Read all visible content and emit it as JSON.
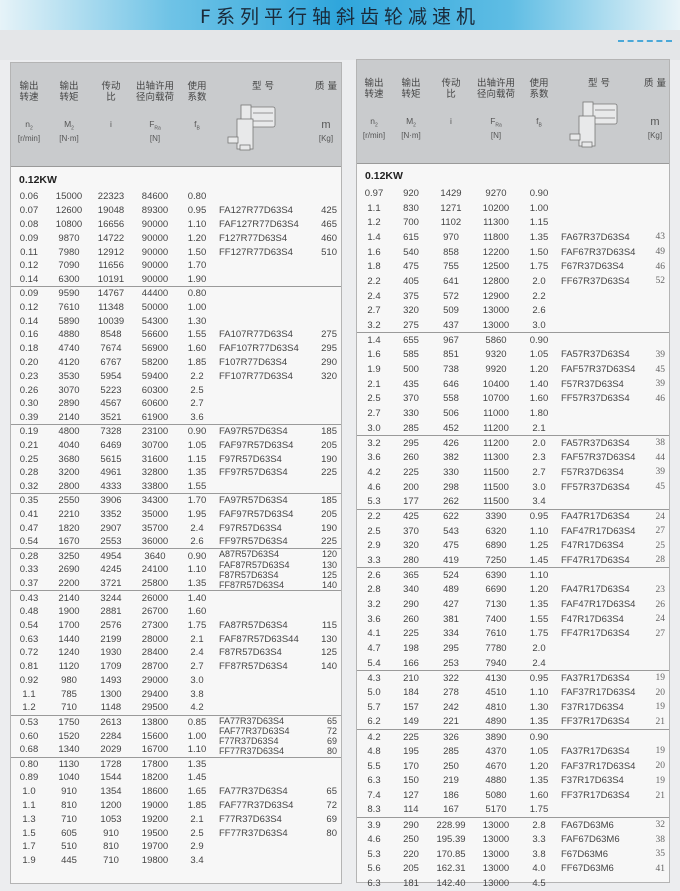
{
  "title": "F系列平行轴斜齿轮减速机",
  "header": {
    "columns": [
      {
        "label": "输出\n转速",
        "symbol": "n",
        "sub": "2",
        "unit": "[r/min]"
      },
      {
        "label": "输出\n转矩",
        "symbol": "M",
        "sub": "2",
        "unit": "[N·m]"
      },
      {
        "label": "传动\n比",
        "symbol": "i",
        "sub": "",
        "unit": ""
      },
      {
        "label": "出轴许用\n径向载荷",
        "symbol": "F",
        "sub": "Ra",
        "unit": "[N]"
      },
      {
        "label": "使用\n系数",
        "symbol": "f",
        "sub": "B",
        "unit": ""
      },
      {
        "label": "型  号",
        "symbol": "",
        "sub": "",
        "unit": ""
      },
      {
        "label": "质 量",
        "symbol": "m",
        "sub": "",
        "unit": "[Kg]"
      }
    ],
    "image_icon": "gear-motor-drawing"
  },
  "left": {
    "power": "0.12KW",
    "groups": [
      {
        "rows": [
          [
            "0.06",
            "15000",
            "22323",
            "84600",
            "0.80",
            "",
            ""
          ],
          [
            "0.07",
            "12600",
            "19048",
            "89300",
            "0.95",
            "FA127R77D63S4",
            "425"
          ],
          [
            "0.08",
            "10800",
            "16656",
            "90000",
            "1.10",
            "FAF127R77D63S4",
            "465"
          ],
          [
            "0.09",
            "9870",
            "14722",
            "90000",
            "1.20",
            "F127R77D63S4",
            "460"
          ],
          [
            "0.11",
            "7980",
            "12912",
            "90000",
            "1.50",
            "FF127R77D63S4",
            "510"
          ],
          [
            "0.12",
            "7090",
            "11656",
            "90000",
            "1.70",
            "",
            ""
          ],
          [
            "0.14",
            "6300",
            "10191",
            "90000",
            "1.90",
            "",
            ""
          ]
        ]
      },
      {
        "rows": [
          [
            "0.09",
            "9590",
            "14767",
            "44400",
            "0.80",
            "",
            ""
          ],
          [
            "0.12",
            "7610",
            "11348",
            "50000",
            "1.00",
            "",
            ""
          ],
          [
            "0.14",
            "5890",
            "10039",
            "54300",
            "1.30",
            "",
            ""
          ],
          [
            "0.16",
            "4880",
            "8548",
            "56600",
            "1.55",
            "FA107R77D63S4",
            "275"
          ],
          [
            "0.18",
            "4740",
            "7674",
            "56900",
            "1.60",
            "FAF107R77D63S4",
            "295"
          ],
          [
            "0.20",
            "4120",
            "6767",
            "58200",
            "1.85",
            "F107R77D63S4",
            "290"
          ],
          [
            "0.23",
            "3530",
            "5954",
            "59400",
            "2.2",
            "FF107R77D63S4",
            "320"
          ],
          [
            "0.26",
            "3070",
            "5223",
            "60300",
            "2.5",
            "",
            ""
          ],
          [
            "0.30",
            "2890",
            "4567",
            "60600",
            "2.7",
            "",
            ""
          ],
          [
            "0.39",
            "2140",
            "3521",
            "61900",
            "3.6",
            "",
            ""
          ]
        ]
      },
      {
        "rows": [
          [
            "0.19",
            "4800",
            "7328",
            "23100",
            "0.90",
            "FA97R57D63S4",
            "185"
          ],
          [
            "0.21",
            "4040",
            "6469",
            "30700",
            "1.05",
            "FAF97R57D63S4",
            "205"
          ],
          [
            "0.25",
            "3680",
            "5615",
            "31600",
            "1.15",
            "F97R57D63S4",
            "190"
          ],
          [
            "0.28",
            "3200",
            "4961",
            "32800",
            "1.35",
            "FF97R57D63S4",
            "225"
          ],
          [
            "0.32",
            "2800",
            "4333",
            "33800",
            "1.55",
            "",
            ""
          ]
        ]
      },
      {
        "rows": [
          [
            "0.35",
            "2550",
            "3906",
            "34300",
            "1.70",
            "FA97R57D63S4",
            "185"
          ],
          [
            "0.41",
            "2210",
            "3352",
            "35000",
            "1.95",
            "FAF97R57D63S4",
            "205"
          ],
          [
            "0.47",
            "1820",
            "2907",
            "35700",
            "2.4",
            "F97R57D63S4",
            "190"
          ],
          [
            "0.54",
            "1670",
            "2553",
            "36000",
            "2.6",
            "FF97R57D63S4",
            "225"
          ]
        ]
      },
      {
        "compact": true,
        "rows": [
          [
            "0.28",
            "3250",
            "4954",
            "3640",
            "0.90"
          ],
          [
            "0.33",
            "2690",
            "4245",
            "24100",
            "1.10"
          ],
          [
            "0.37",
            "2200",
            "3721",
            "25800",
            "1.35"
          ]
        ],
        "models": [
          [
            "A87R57D63S4",
            "120"
          ],
          [
            "FAF87R57D63S4",
            "130"
          ],
          [
            "F87R57D63S4",
            "125"
          ],
          [
            "FF87R57D63S4",
            "140"
          ]
        ]
      },
      {
        "rows": [
          [
            "0.43",
            "2140",
            "3244",
            "26000",
            "1.40",
            "",
            ""
          ],
          [
            "0.48",
            "1900",
            "2881",
            "26700",
            "1.60",
            "",
            ""
          ],
          [
            "0.54",
            "1700",
            "2576",
            "27300",
            "1.75",
            "FA87R57D63S4",
            "115"
          ],
          [
            "0.63",
            "1440",
            "2199",
            "28000",
            "2.1",
            "FAF87R57D63S44",
            "130"
          ],
          [
            "0.72",
            "1240",
            "1930",
            "28400",
            "2.4",
            "F87R57D63S4",
            "125"
          ],
          [
            "0.81",
            "1120",
            "1709",
            "28700",
            "2.7",
            "FF87R57D63S4",
            "140"
          ],
          [
            "0.92",
            "980",
            "1493",
            "29000",
            "3.0",
            "",
            ""
          ],
          [
            "1.1",
            "785",
            "1300",
            "29400",
            "3.8",
            "",
            ""
          ],
          [
            "1.2",
            "710",
            "1148",
            "29500",
            "4.2",
            "",
            ""
          ]
        ]
      },
      {
        "compact": true,
        "rows": [
          [
            "0.53",
            "1750",
            "2613",
            "13800",
            "0.85"
          ],
          [
            "0.60",
            "1520",
            "2284",
            "15600",
            "1.00"
          ],
          [
            "0.68",
            "1340",
            "2029",
            "16700",
            "1.10"
          ]
        ],
        "models": [
          [
            "FA77R37D63S4",
            "65"
          ],
          [
            "FAF77R37D63S4",
            "72"
          ],
          [
            "F77R37D63S4",
            "69"
          ],
          [
            "FF77R37D63S4",
            "80"
          ]
        ]
      },
      {
        "rows": [
          [
            "0.80",
            "1130",
            "1728",
            "17800",
            "1.35",
            "",
            ""
          ],
          [
            "0.89",
            "1040",
            "1544",
            "18200",
            "1.45",
            "",
            ""
          ],
          [
            "1.0",
            "910",
            "1354",
            "18600",
            "1.65",
            "FA77R37D63S4",
            "65"
          ],
          [
            "1.1",
            "810",
            "1200",
            "19000",
            "1.85",
            "FAF77R37D63S4",
            "72"
          ],
          [
            "1.3",
            "710",
            "1053",
            "19200",
            "2.1",
            "F77R37D63S4",
            "69"
          ],
          [
            "1.5",
            "605",
            "910",
            "19500",
            "2.5",
            "FF77R37D63S4",
            "80"
          ],
          [
            "1.7",
            "510",
            "810",
            "19700",
            "2.9",
            "",
            ""
          ],
          [
            "1.9",
            "445",
            "710",
            "19800",
            "3.4",
            "",
            ""
          ]
        ]
      }
    ]
  },
  "right": {
    "power": "0.12KW",
    "groups": [
      {
        "rows": [
          [
            "0.97",
            "920",
            "1429",
            "9270",
            "0.90",
            "",
            ""
          ],
          [
            "1.1",
            "830",
            "1271",
            "10200",
            "1.00",
            "",
            ""
          ],
          [
            "1.2",
            "700",
            "1102",
            "11300",
            "1.15",
            "",
            ""
          ],
          [
            "1.4",
            "615",
            "970",
            "11800",
            "1.35",
            "FA67R37D63S4",
            "43"
          ],
          [
            "1.6",
            "540",
            "858",
            "12200",
            "1.50",
            "FAF67R37D63S4",
            "49"
          ],
          [
            "1.8",
            "475",
            "755",
            "12500",
            "1.75",
            "F67R37D63S4",
            "46"
          ],
          [
            "2.2",
            "405",
            "641",
            "12800",
            "2.0",
            "FF67R37D63S4",
            "52"
          ],
          [
            "2.4",
            "375",
            "572",
            "12900",
            "2.2",
            "",
            ""
          ],
          [
            "2.7",
            "320",
            "509",
            "13000",
            "2.6",
            "",
            ""
          ],
          [
            "3.2",
            "275",
            "437",
            "13000",
            "3.0",
            "",
            ""
          ]
        ]
      },
      {
        "rows": [
          [
            "1.4",
            "655",
            "967",
            "5860",
            "0.90",
            "",
            ""
          ],
          [
            "1.6",
            "585",
            "851",
            "9320",
            "1.05",
            "FA57R37D63S4",
            "39"
          ],
          [
            "1.9",
            "500",
            "738",
            "9920",
            "1.20",
            "FAF57R37D63S4",
            "45"
          ],
          [
            "2.1",
            "435",
            "646",
            "10400",
            "1.40",
            "F57R37D63S4",
            "39"
          ],
          [
            "2.5",
            "370",
            "558",
            "10700",
            "1.60",
            "FF57R37D63S4",
            "46"
          ],
          [
            "2.7",
            "330",
            "506",
            "11000",
            "1.80",
            "",
            ""
          ],
          [
            "3.0",
            "285",
            "452",
            "11200",
            "2.1",
            "",
            ""
          ]
        ]
      },
      {
        "rows": [
          [
            "3.2",
            "295",
            "426",
            "11200",
            "2.0",
            "FA57R37D63S4",
            "38"
          ],
          [
            "3.6",
            "260",
            "382",
            "11300",
            "2.3",
            "FAF57R37D63S4",
            "44"
          ],
          [
            "4.2",
            "225",
            "330",
            "11500",
            "2.7",
            "F57R37D63S4",
            "39"
          ],
          [
            "4.6",
            "200",
            "298",
            "11500",
            "3.0",
            "FF57R37D63S4",
            "45"
          ],
          [
            "5.3",
            "177",
            "262",
            "11500",
            "3.4",
            "",
            ""
          ]
        ]
      },
      {
        "rows": [
          [
            "2.2",
            "425",
            "622",
            "3390",
            "0.95",
            "FA47R17D63S4",
            "24"
          ],
          [
            "2.5",
            "370",
            "543",
            "6320",
            "1.10",
            "FAF47R17D63S4",
            "27"
          ],
          [
            "2.9",
            "320",
            "475",
            "6890",
            "1.25",
            "F47R17D63S4",
            "25"
          ],
          [
            "3.3",
            "280",
            "419",
            "7250",
            "1.45",
            "FF47R17D63S4",
            "28"
          ]
        ]
      },
      {
        "rows": [
          [
            "2.6",
            "365",
            "524",
            "6390",
            "1.10",
            "",
            ""
          ],
          [
            "2.8",
            "340",
            "489",
            "6690",
            "1.20",
            "FA47R17D63S4",
            "23"
          ],
          [
            "3.2",
            "290",
            "427",
            "7130",
            "1.35",
            "FAF47R17D63S4",
            "26"
          ],
          [
            "3.6",
            "260",
            "381",
            "7400",
            "1.55",
            "F47R17D63S4",
            "24"
          ],
          [
            "4.1",
            "225",
            "334",
            "7610",
            "1.75",
            "FF47R17D63S4",
            "27"
          ],
          [
            "4.7",
            "198",
            "295",
            "7780",
            "2.0",
            "",
            ""
          ],
          [
            "5.4",
            "166",
            "253",
            "7940",
            "2.4",
            "",
            ""
          ]
        ]
      },
      {
        "rows": [
          [
            "4.3",
            "210",
            "322",
            "4130",
            "0.95",
            "FA37R17D63S4",
            "19"
          ],
          [
            "5.0",
            "184",
            "278",
            "4510",
            "1.10",
            "FAF37R17D63S4",
            "20"
          ],
          [
            "5.7",
            "157",
            "242",
            "4810",
            "1.30",
            "F37R17D63S4",
            "19"
          ],
          [
            "6.2",
            "149",
            "221",
            "4890",
            "1.35",
            "FF37R17D63S4",
            "21"
          ]
        ]
      },
      {
        "rows": [
          [
            "4.2",
            "225",
            "326",
            "3890",
            "0.90",
            "",
            ""
          ],
          [
            "4.8",
            "195",
            "285",
            "4370",
            "1.05",
            "FA37R17D63S4",
            "19"
          ],
          [
            "5.5",
            "170",
            "250",
            "4670",
            "1.20",
            "FAF37R17D63S4",
            "20"
          ],
          [
            "6.3",
            "150",
            "219",
            "4880",
            "1.35",
            "F37R17D63S4",
            "19"
          ],
          [
            "7.4",
            "127",
            "186",
            "5080",
            "1.60",
            "FF37R17D63S4",
            "21"
          ],
          [
            "8.3",
            "114",
            "167",
            "5170",
            "1.75",
            "",
            ""
          ]
        ]
      },
      {
        "rows": [
          [
            "3.9",
            "290",
            "228.99",
            "13000",
            "2.8",
            "FA67D63M6",
            "32"
          ],
          [
            "4.6",
            "250",
            "195.39",
            "13000",
            "3.3",
            "FAF67D63M6",
            "38"
          ],
          [
            "5.3",
            "220",
            "170.85",
            "13000",
            "3.8",
            "F67D63M6",
            "35"
          ],
          [
            "5.6",
            "205",
            "162.31",
            "13000",
            "4.0",
            "FF67D63M6",
            "41"
          ],
          [
            "6.3",
            "181",
            "142.40",
            "13000",
            "4.5",
            "",
            ""
          ]
        ]
      }
    ]
  }
}
